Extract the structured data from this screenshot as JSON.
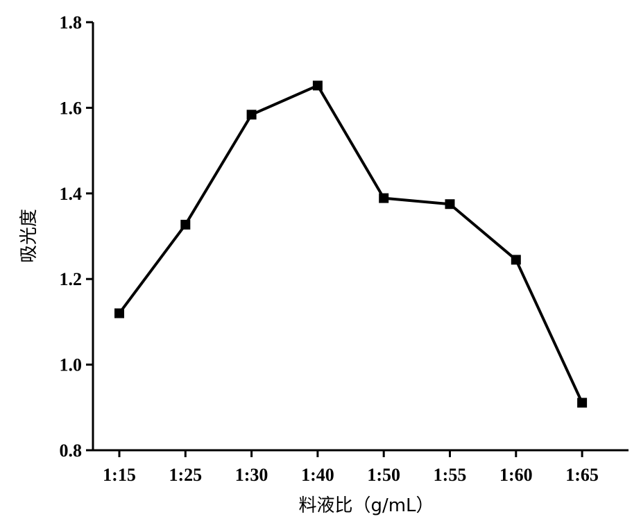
{
  "chart_data": {
    "type": "line",
    "xlabel": "料液比（g/mL）",
    "ylabel": "吸光度",
    "categories": [
      "1:15",
      "1:25",
      "1:30",
      "1:40",
      "1:50",
      "1:55",
      "1:60",
      "1:65"
    ],
    "series": [
      {
        "values": [
          1.12,
          1.327,
          1.584,
          1.652,
          1.389,
          1.375,
          1.245,
          0.911
        ]
      }
    ],
    "ylim": [
      0.8,
      1.8
    ],
    "yticks": [
      "0.8",
      "1.0",
      "1.2",
      "1.4",
      "1.6",
      "1.8"
    ],
    "grid": false,
    "legend": "none",
    "marker": "square",
    "color": "#000000"
  }
}
